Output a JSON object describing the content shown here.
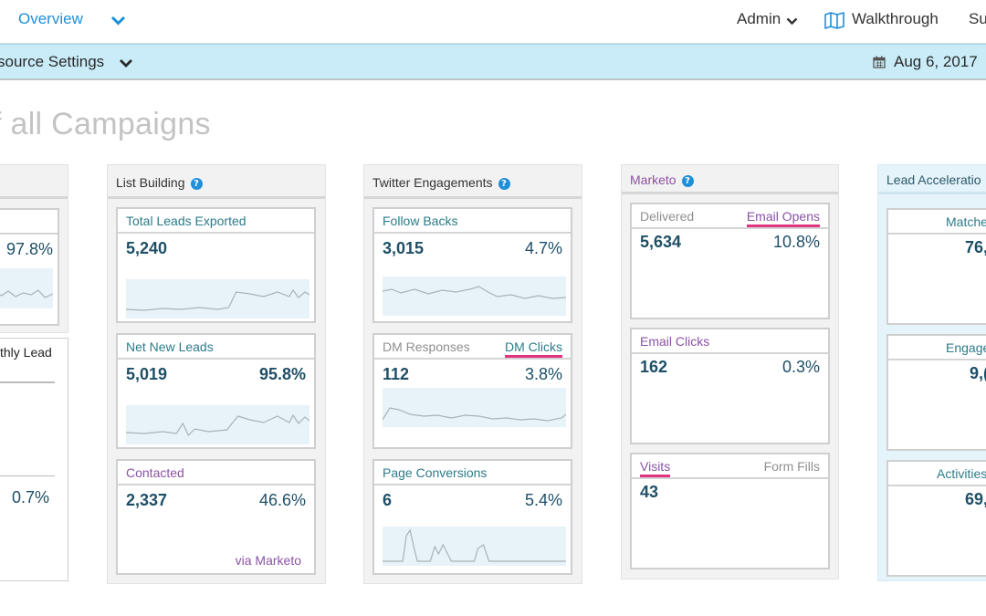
{
  "nav": {
    "overview": "Overview",
    "admin": "Admin",
    "walkthrough": "Walkthrough",
    "support_partial": "Su"
  },
  "subbar": {
    "resource_settings": "source Settings",
    "date": "Aug 6, 2017"
  },
  "page_title": "f all Campaigns",
  "left_panel": {
    "pct_top": "97.8%",
    "monthly_lead": "thly Lead",
    "pct_bottom": "0.7%"
  },
  "list_building": {
    "title": "List Building",
    "cards": [
      {
        "label": "Total Leads Exported",
        "value": "5,240"
      },
      {
        "label": "Net New Leads",
        "value": "5,019",
        "pct": "95.8%"
      },
      {
        "label": "Contacted",
        "value": "2,337",
        "pct": "46.6%",
        "footer": "via Marketo"
      }
    ]
  },
  "twitter": {
    "title": "Twitter Engagements",
    "cards": [
      {
        "label": "Follow Backs",
        "value": "3,015",
        "pct": "4.7%"
      },
      {
        "label": "DM Responses",
        "label2": "DM Clicks",
        "value": "112",
        "pct": "3.8%"
      },
      {
        "label": "Page Conversions",
        "value": "6",
        "pct": "5.4%"
      }
    ]
  },
  "marketo": {
    "title": "Marketo",
    "cards": [
      {
        "label": "Delivered",
        "label2": "Email Opens",
        "value": "5,634",
        "pct": "10.8%"
      },
      {
        "label": "Email Clicks",
        "value": "162",
        "pct": "0.3%"
      },
      {
        "label": "Visits",
        "label2": "Form Fills",
        "value": "43"
      }
    ]
  },
  "lead_acceleration": {
    "title": "Lead Acceleratio",
    "cards": [
      {
        "label": "Matche",
        "value": "76,"
      },
      {
        "label": "Engage",
        "value": "9,("
      },
      {
        "label": "Activities",
        "value": "69,"
      }
    ]
  },
  "colors": {
    "teal_label": "#2c7b8a",
    "purple_label": "#8b52a6",
    "value_text": "#1e4f66",
    "pink_underline": "#e23380",
    "subbar_bg": "#c9ecf8",
    "nav_link": "#1f8fd9"
  },
  "icons": [
    "chevron-down-icon",
    "map-icon",
    "calendar-icon",
    "help-icon"
  ]
}
